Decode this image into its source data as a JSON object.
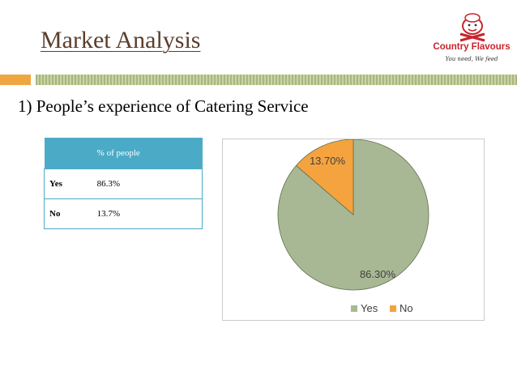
{
  "header": {
    "title": "Market Analysis",
    "subtitle": "1) People’s experience of Catering Service"
  },
  "logo": {
    "brand": "Country Flavours",
    "tagline": "You need, We feed"
  },
  "table": {
    "header": [
      "",
      "% of people"
    ],
    "rows": [
      [
        "Yes",
        "86.3%"
      ],
      [
        "No",
        "13.7%"
      ]
    ]
  },
  "colors": {
    "yes": "#a9b894",
    "no": "#f4a33e",
    "accent_orange": "#f0a640",
    "table_header": "#4babc6",
    "title": "#5a3e2b",
    "brand_red": "#c8242b"
  },
  "chart_data": {
    "type": "pie",
    "categories": [
      "Yes",
      "No"
    ],
    "values": [
      86.3,
      13.7
    ],
    "data_labels": [
      "86.30%",
      "13.70%"
    ],
    "legend": [
      "Yes",
      "No"
    ],
    "legend_position": "bottom"
  }
}
